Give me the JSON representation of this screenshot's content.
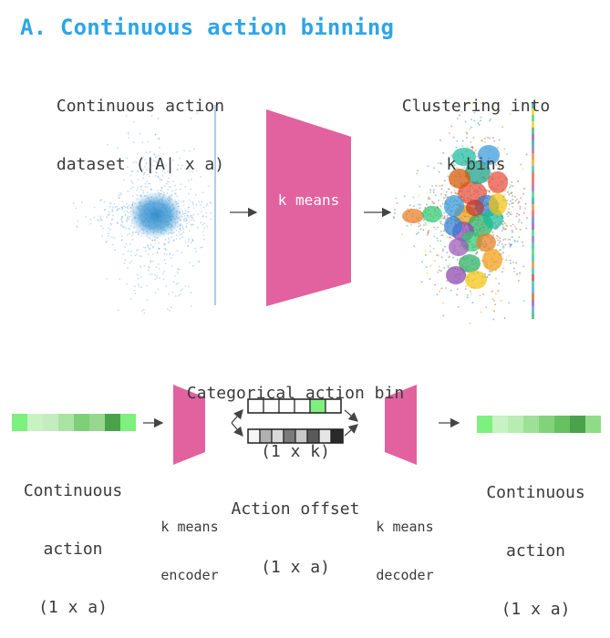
{
  "header": {
    "title": "A. Continuous action binning"
  },
  "top_row": {
    "dataset_label_line1": "Continuous action",
    "dataset_label_line2": "dataset (|A| x a)",
    "kmeans_block_label": "k means",
    "clustering_label_line1": "Clustering into",
    "clustering_label_line2": "k bins"
  },
  "bottom_row": {
    "input_label_line1": "Continuous",
    "input_label_line2": "action",
    "input_label_line3": "(1 x a)",
    "encoder_label_line1": "k means",
    "encoder_label_line2": "encoder",
    "bin_label_line1": "Categorical action bin",
    "bin_label_line2": "(1 x k)",
    "offset_label_line1": "Action offset",
    "offset_label_line2": "(1 x a)",
    "decoder_label_line1": "k means",
    "decoder_label_line2": "decoder",
    "output_label_line1": "Continuous",
    "output_label_line2": "action",
    "output_label_line3": "(1 x a)"
  },
  "colors": {
    "title": "#2ea5e8",
    "trapezoid": "#e2629f",
    "scatter_point": "#5b9fd1",
    "bin_active": "#7ef07e",
    "text": "#3a3a3a"
  },
  "bars": {
    "input_action": [
      "#7ef07e",
      "#c7f2c2",
      "#c3ecbf",
      "#a9e4a3",
      "#7ed078",
      "#96d890",
      "#4aa34a",
      "#7ef07e"
    ],
    "categorical_bin": [
      "#ffffff",
      "#ffffff",
      "#ffffff",
      "#ffffff",
      "#7ef07e",
      "#ffffff"
    ],
    "action_offset": [
      "#f5f5f5",
      "#b0b0b0",
      "#d9d9d9",
      "#7a7a7a",
      "#c8c8c8",
      "#5a5a5a",
      "#e6e6e6",
      "#2a2a2a"
    ],
    "output_action": [
      "#7ef07e",
      "#c7f2c2",
      "#b8ecb2",
      "#9fe098",
      "#82d27b",
      "#66c160",
      "#4aa34a",
      "#8fdc88"
    ]
  },
  "cluster_colors": [
    "#e74c3c",
    "#2d7fd3",
    "#f39c12",
    "#27ae60",
    "#8e44ad",
    "#1abc9c",
    "#c0392b",
    "#3498db",
    "#f1c40f",
    "#2ecc71",
    "#e67e22",
    "#9b59b6",
    "#16a085",
    "#d35400"
  ]
}
